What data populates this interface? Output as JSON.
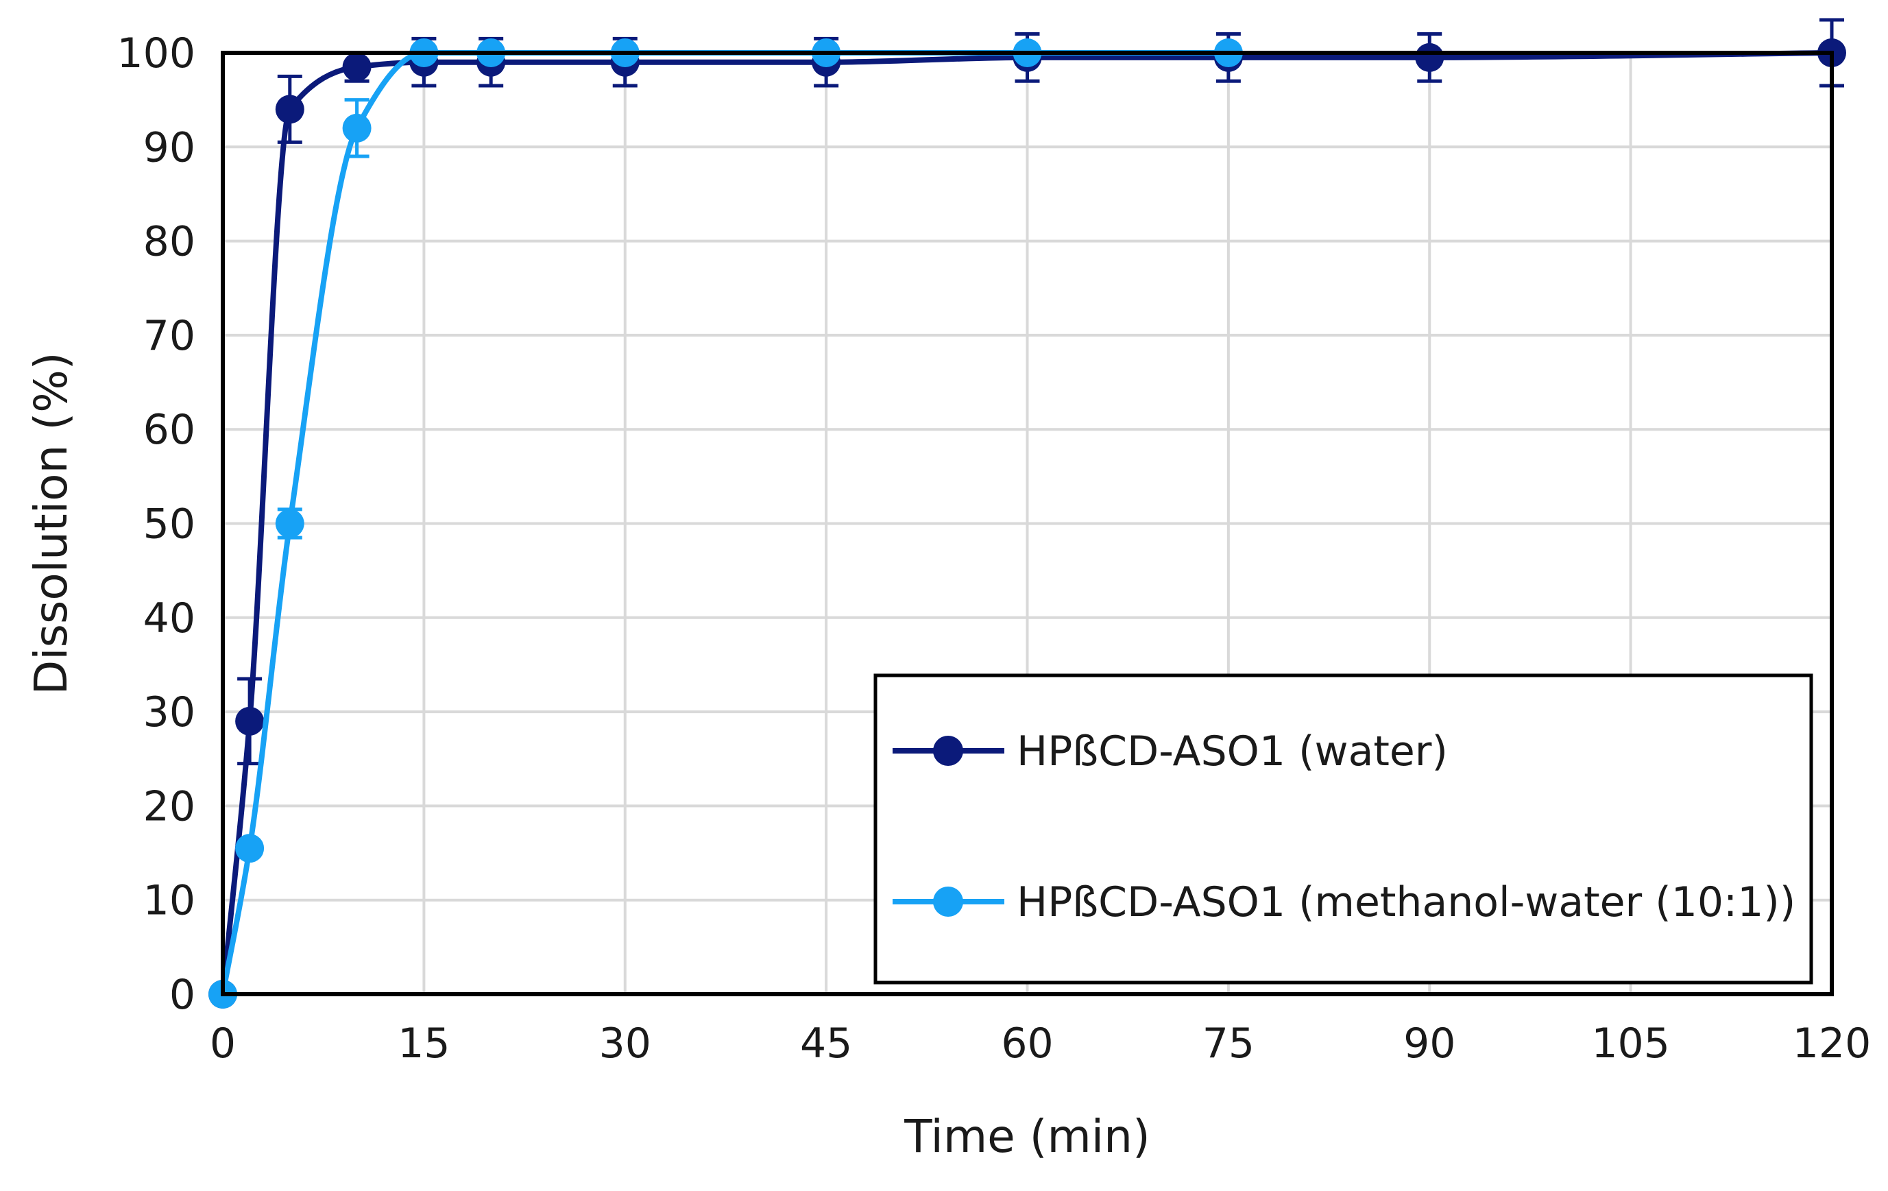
{
  "chart_data": {
    "type": "line",
    "title": "",
    "xlabel": "Time (min)",
    "ylabel": "Dissolution (%)",
    "xlim": [
      0,
      120
    ],
    "ylim": [
      0,
      100
    ],
    "xticks": [
      0,
      15,
      30,
      45,
      60,
      75,
      90,
      105,
      120
    ],
    "yticks": [
      0,
      10,
      20,
      30,
      40,
      50,
      60,
      70,
      80,
      90,
      100
    ],
    "grid": true,
    "legend_position": "bottom-right",
    "series": [
      {
        "name": "HPßCD-ASO1 (water)",
        "color": "#0b1a7a",
        "x": [
          0,
          2,
          5,
          10,
          15,
          20,
          30,
          45,
          60,
          75,
          90,
          120
        ],
        "y": [
          0,
          29,
          94,
          98.5,
          99,
          99,
          99,
          99,
          99.5,
          99.5,
          99.5,
          100
        ],
        "err": [
          0,
          4.5,
          3.5,
          1.5,
          2.5,
          2.5,
          2.5,
          2.5,
          2.5,
          2.5,
          2.5,
          3.5
        ]
      },
      {
        "name": "HPßCD-ASO1 (methanol-water (10:1))",
        "color": "#17a2f5",
        "x": [
          0,
          2,
          5,
          10,
          15,
          20,
          30,
          45,
          60,
          75
        ],
        "y": [
          0,
          15.5,
          50,
          92,
          100,
          100,
          100,
          100,
          100,
          100
        ],
        "err": [
          0,
          0,
          1.5,
          3.0,
          0,
          0,
          0,
          0,
          0,
          0
        ]
      }
    ]
  }
}
